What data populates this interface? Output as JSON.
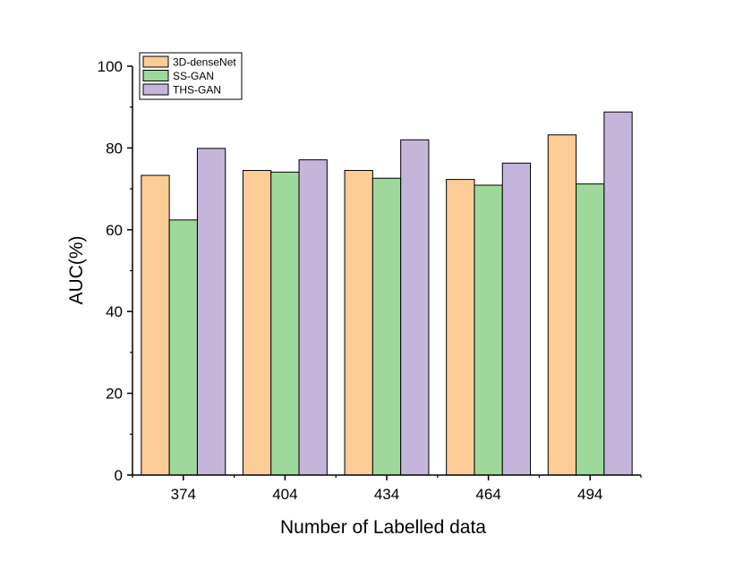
{
  "chart_data": {
    "type": "bar",
    "xlabel": "Number of Labelled data",
    "ylabel": "AUC(%)",
    "categories": [
      "374",
      "404",
      "434",
      "464",
      "494"
    ],
    "ylim": [
      0,
      100
    ],
    "yticks": [
      "0",
      "20",
      "40",
      "60",
      "80",
      "100"
    ],
    "grid": false,
    "legend_position": "top-left",
    "series": [
      {
        "name": "3D-denseNet",
        "color": "#fccc96",
        "values": [
          73.3,
          74.5,
          74.5,
          72.3,
          83.2
        ]
      },
      {
        "name": "SS-GAN",
        "color": "#9ed99b",
        "values": [
          62.4,
          74.1,
          72.6,
          70.9,
          71.2
        ]
      },
      {
        "name": "THS-GAN",
        "color": "#c5b5db",
        "values": [
          79.9,
          77.1,
          82.0,
          76.3,
          88.8
        ]
      }
    ]
  }
}
